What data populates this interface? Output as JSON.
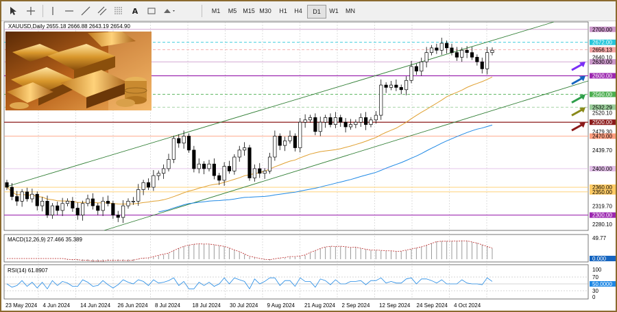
{
  "toolbar": {
    "tools": [
      "cursor-icon",
      "crosshair-icon",
      "vertical-line-icon",
      "horizontal-line-icon",
      "trendline-icon",
      "channel-icon",
      "fibonacci-icon",
      "text-icon",
      "label-icon",
      "shapes-icon"
    ],
    "timeframes": [
      "M1",
      "M5",
      "M15",
      "M30",
      "H1",
      "H4",
      "D1",
      "W1",
      "MN"
    ],
    "active_timeframe": "D1"
  },
  "header": {
    "symbol_line": "XAUUSD,Daily  2655.18 2666.88 2643.19 2654.90"
  },
  "price_axis": {
    "ticks": [
      "2700.00",
      "2672.00",
      "2656.13",
      "2640.10",
      "2630.00",
      "2600.00",
      "2560.00",
      "2532.29",
      "2520.10",
      "2500.00",
      "2479.30",
      "2470.00",
      "2439.70",
      "2400.00",
      "2360.00",
      "2350.00",
      "2319.70",
      "2300.00",
      "2280.10"
    ],
    "highlight_levels": [
      {
        "text": "2700.00",
        "bg": "#cc99cc"
      },
      {
        "text": "2672.00",
        "bg": "#26c6da"
      },
      {
        "text": "2656.13",
        "bg": "#f4a6a6"
      },
      {
        "text": "2630.00",
        "bg": "#cc99cc"
      },
      {
        "text": "2600.00",
        "bg": "#9c27b0"
      },
      {
        "text": "2560.00",
        "bg": "#4caf50"
      },
      {
        "text": "2532.29",
        "bg": "#9acd9a"
      },
      {
        "text": "2500.00",
        "bg": "#8b1a1a"
      },
      {
        "text": "2470.00",
        "bg": "#ff9f80"
      },
      {
        "text": "2400.00",
        "bg": "#e1bee7"
      },
      {
        "text": "2360.00",
        "bg": "#ffcc66"
      },
      {
        "text": "2350.00",
        "bg": "#ffcc66"
      },
      {
        "text": "2300.00",
        "bg": "#9c27b0"
      }
    ]
  },
  "macd": {
    "label": "MACD(12,26,9) 27.466 35.389",
    "ticks": [
      "49.77",
      "0.000"
    ]
  },
  "rsi": {
    "label": "RSI(14) 61.8907",
    "ticks": [
      "100",
      "70",
      "50.0000",
      "30",
      "0"
    ]
  },
  "date_axis": [
    "23 May 2024",
    "4 Jun 2024",
    "14 Jun 2024",
    "26 Jun 2024",
    "8 Jul 2024",
    "18 Jul 2024",
    "30 Jul 2024",
    "9 Aug 2024",
    "21 Aug 2024",
    "2 Sep 2024",
    "12 Sep 2024",
    "24 Sep 2024",
    "4 Oct 2024"
  ],
  "chart_data": {
    "type": "candlestick",
    "symbol": "XAUUSD",
    "timeframe": "Daily",
    "ohlc_last": {
      "open": 2655.18,
      "high": 2666.88,
      "low": 2643.19,
      "close": 2654.9
    },
    "closes": [
      2360,
      2340,
      2330,
      2350,
      2335,
      2345,
      2320,
      2330,
      2300,
      2320,
      2310,
      2325,
      2330,
      2315,
      2300,
      2325,
      2335,
      2320,
      2310,
      2330,
      2325,
      2300,
      2295,
      2320,
      2330,
      2330,
      2355,
      2370,
      2360,
      2385,
      2390,
      2400,
      2420,
      2465,
      2455,
      2470,
      2440,
      2400,
      2410,
      2400,
      2410,
      2385,
      2375,
      2405,
      2395,
      2425,
      2440,
      2445,
      2380,
      2400,
      2390,
      2395,
      2425,
      2470,
      2450,
      2460,
      2470,
      2445,
      2500,
      2505,
      2510,
      2480,
      2500,
      2510,
      2495,
      2510,
      2500,
      2490,
      2495,
      2500,
      2510,
      2495,
      2505,
      2515,
      2580,
      2575,
      2580,
      2575,
      2570,
      2590,
      2620,
      2610,
      2630,
      2650,
      2660,
      2655,
      2670,
      2660,
      2650,
      2640,
      2655,
      2650,
      2640,
      2630,
      2615,
      2650,
      2655
    ],
    "price_range": [
      2270,
      2710
    ],
    "key_levels": [
      2700,
      2672,
      2656.13,
      2630,
      2600,
      2560,
      2532.29,
      2500,
      2470,
      2400,
      2360,
      2350,
      2300
    ]
  }
}
